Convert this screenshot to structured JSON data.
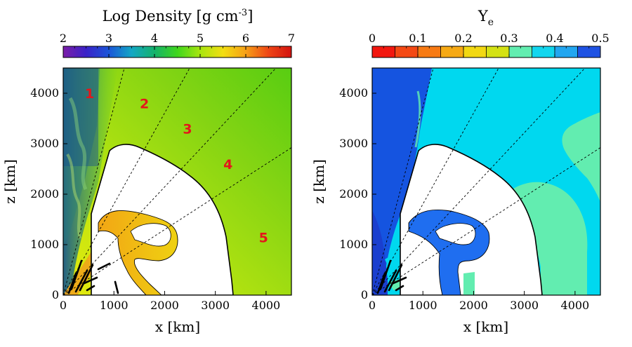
{
  "chart_data": [
    {
      "type": "heatmap",
      "title": "Log Density [g cm",
      "title_superscript": "-3",
      "title_close": "]",
      "colorbar": {
        "ticks": [
          "2",
          "3",
          "4",
          "5",
          "6",
          "7"
        ],
        "range": [
          2,
          7
        ]
      },
      "xlabel": "x [km]",
      "ylabel": "z [km]",
      "xlim": [
        0,
        4500
      ],
      "ylim": [
        0,
        4500
      ],
      "xticks": [
        "0",
        "1000",
        "2000",
        "3000",
        "4000"
      ],
      "yticks": [
        "0",
        "1000",
        "2000",
        "3000",
        "4000"
      ],
      "ray_angles_deg": [
        75,
        61,
        47,
        33
      ],
      "region_labels": [
        {
          "text": "1",
          "x": 520,
          "z": 3900
        },
        {
          "text": "2",
          "x": 1600,
          "z": 3700
        },
        {
          "text": "3",
          "x": 2450,
          "z": 3200
        },
        {
          "text": "4",
          "x": 3250,
          "z": 2500
        },
        {
          "text": "5",
          "x": 3950,
          "z": 1050
        }
      ]
    },
    {
      "type": "heatmap",
      "title": "Y",
      "title_subscript": "e",
      "colorbar": {
        "ticks": [
          "0",
          "0.1",
          "0.2",
          "0.3",
          "0.4",
          "0.5"
        ],
        "range": [
          0,
          0.5
        ],
        "bins": 10
      },
      "xlabel": "x [km]",
      "ylabel": "z [km]",
      "xlim": [
        0,
        4500
      ],
      "ylim": [
        0,
        4500
      ],
      "xticks": [
        "0",
        "1000",
        "2000",
        "3000",
        "4000"
      ],
      "yticks": [
        "0",
        "1000",
        "2000",
        "3000",
        "4000"
      ],
      "ray_angles_deg": [
        75,
        61,
        47,
        33
      ]
    }
  ]
}
